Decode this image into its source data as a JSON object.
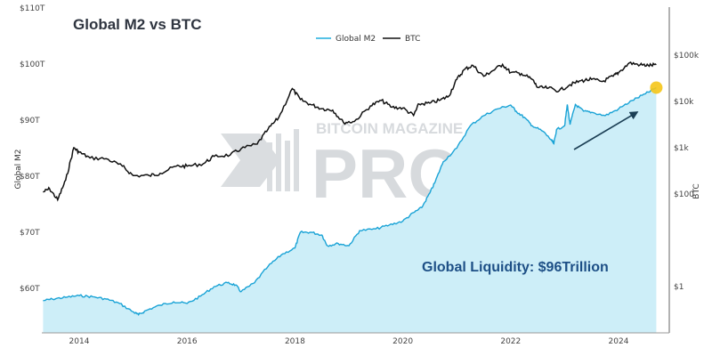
{
  "chart_data": {
    "type": "line",
    "title": "Global M2 vs BTC",
    "ylabel_left": "Global M2",
    "ylabel_right": "BTC",
    "left_ticks": [
      "$60T",
      "$70T",
      "$80T",
      "$90T",
      "$100T",
      "$110T"
    ],
    "left_tick_values": [
      60,
      70,
      80,
      90,
      100,
      110
    ],
    "ylim_left": [
      52.2,
      111.5
    ],
    "right_ticks": [
      "$1",
      "$100",
      "$1k",
      "$10k",
      "$100k"
    ],
    "right_tick_values": [
      1,
      100,
      1000,
      10000,
      100000
    ],
    "right_scale": "log",
    "x_ticks": [
      "2014",
      "2016",
      "2018",
      "2020",
      "2022",
      "2024"
    ],
    "x_tick_values": [
      2014,
      2016,
      2018,
      2020,
      2022,
      2024
    ],
    "xlim": [
      2013.33,
      2025.1
    ],
    "legend": {
      "placement": "top-center",
      "entries": [
        "Global M2",
        "BTC"
      ]
    },
    "annotation": "Global Liquidity: $96Trillion",
    "watermark": "BITCOIN MAGAZINE PRO",
    "colors": {
      "m2_line": "#1aa3d6",
      "m2_fill": "#cdeef8",
      "btc": "#111111",
      "highlight": "#f5c518",
      "arrow": "#1b3f55"
    },
    "series": [
      {
        "name": "Global M2",
        "unit": "trillion USD",
        "x": [
          2013.33,
          2013.5,
          2013.75,
          2014,
          2014.25,
          2014.5,
          2014.75,
          2015,
          2015.1,
          2015.25,
          2015.5,
          2015.75,
          2016,
          2016.25,
          2016.5,
          2016.75,
          2016.9,
          2017,
          2017.25,
          2017.5,
          2017.75,
          2018,
          2018.1,
          2018.3,
          2018.5,
          2018.6,
          2018.8,
          2019,
          2019.2,
          2019.5,
          2019.75,
          2020,
          2020.2,
          2020.35,
          2020.5,
          2020.6,
          2020.75,
          2021,
          2021.25,
          2021.5,
          2021.75,
          2022,
          2022.1,
          2022.25,
          2022.4,
          2022.6,
          2022.75,
          2022.8,
          2022.85,
          2023,
          2023.05,
          2023.1,
          2023.2,
          2023.35,
          2023.5,
          2023.75,
          2024,
          2024.25,
          2024.5,
          2024.7
        ],
        "values": [
          57.8,
          58.1,
          58.4,
          58.7,
          58.5,
          58.1,
          57.3,
          55.8,
          55.3,
          56.1,
          57.0,
          57.6,
          57.3,
          58.6,
          60.3,
          61.0,
          60.6,
          59.4,
          61.0,
          63.9,
          66.0,
          67.2,
          70.0,
          70.0,
          69.5,
          67.6,
          68.0,
          67.6,
          70.3,
          70.6,
          71.3,
          72.0,
          73.5,
          74.4,
          77.0,
          79.0,
          82.6,
          85.0,
          89.0,
          90.8,
          92.0,
          92.7,
          91.6,
          90.5,
          89.0,
          88.0,
          86.5,
          85.8,
          88.3,
          89.0,
          92.8,
          89.2,
          92.8,
          91.6,
          91.4,
          90.8,
          92.0,
          93.5,
          94.7,
          95.8
        ]
      },
      {
        "name": "BTC",
        "unit": "USD (log)",
        "x": [
          2013.33,
          2013.45,
          2013.6,
          2013.75,
          2013.9,
          2014.0,
          2014.2,
          2014.5,
          2014.8,
          2015.0,
          2015.3,
          2015.5,
          2015.8,
          2016.0,
          2016.3,
          2016.5,
          2016.8,
          2017.0,
          2017.3,
          2017.5,
          2017.7,
          2017.95,
          2018.1,
          2018.3,
          2018.5,
          2018.7,
          2018.9,
          2019.1,
          2019.4,
          2019.6,
          2019.8,
          2020.0,
          2020.2,
          2020.3,
          2020.5,
          2020.7,
          2020.85,
          2021.0,
          2021.15,
          2021.3,
          2021.5,
          2021.65,
          2021.85,
          2022.0,
          2022.2,
          2022.4,
          2022.5,
          2022.7,
          2022.9,
          2023.1,
          2023.3,
          2023.5,
          2023.7,
          2023.9,
          2024.0,
          2024.2,
          2024.4,
          2024.55,
          2024.7
        ],
        "values": [
          110,
          130,
          75,
          200,
          1000,
          800,
          600,
          580,
          400,
          250,
          250,
          280,
          400,
          400,
          450,
          650,
          700,
          950,
          1200,
          2500,
          4500,
          19000,
          11000,
          8500,
          7000,
          6500,
          3500,
          3700,
          8000,
          10500,
          7500,
          7200,
          5000,
          8800,
          9200,
          10800,
          13000,
          30000,
          50000,
          60000,
          35000,
          45000,
          63000,
          42000,
          40000,
          30000,
          20000,
          19500,
          17000,
          23000,
          28000,
          30000,
          27000,
          35000,
          42000,
          68000,
          62000,
          60000,
          62000
        ]
      }
    ]
  }
}
